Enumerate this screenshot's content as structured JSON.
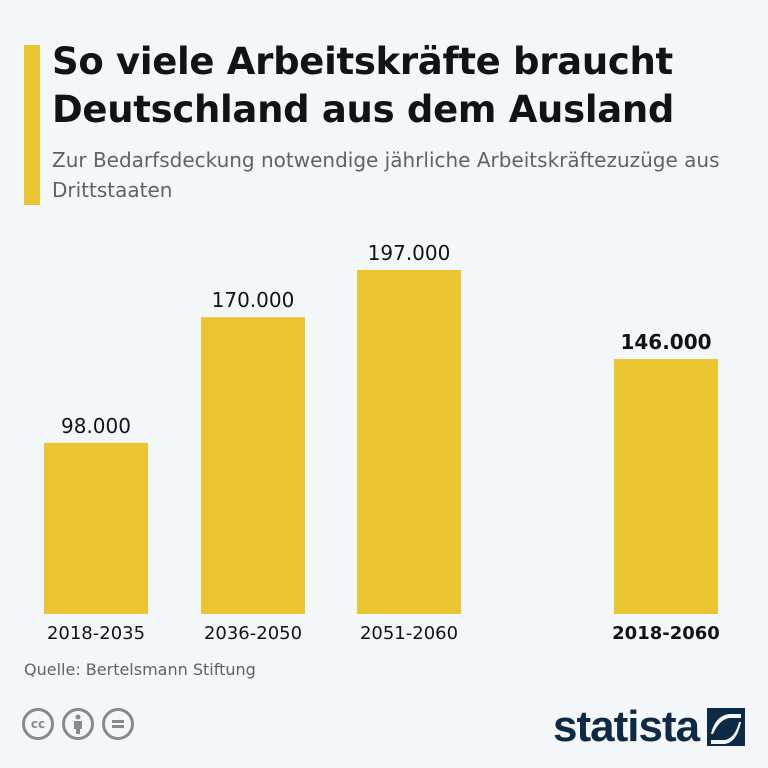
{
  "title": "So viele Arbeitskräfte braucht Deutschland aus dem Ausland",
  "subtitle": "Zur Bedarfsdeckung notwendige jährliche Arbeitskräftezuzüge aus Drittstaaten",
  "source": "Quelle: Bertelsmann Stiftung",
  "logo": "statista",
  "colors": {
    "bar": "#ebc531",
    "text": "#0f1419",
    "background": "#f4f7fa"
  },
  "chart_data": {
    "type": "bar",
    "categories": [
      "2018-2035",
      "2036-2050",
      "2051-2060",
      "2018-2060"
    ],
    "values": [
      98000,
      170000,
      197000,
      146000
    ],
    "value_labels": [
      "98.000",
      "170.000",
      "197.000",
      "146.000"
    ],
    "highlighted_category": "2018-2060",
    "ylim": [
      0,
      197000
    ],
    "grid": false,
    "legend": "none"
  }
}
